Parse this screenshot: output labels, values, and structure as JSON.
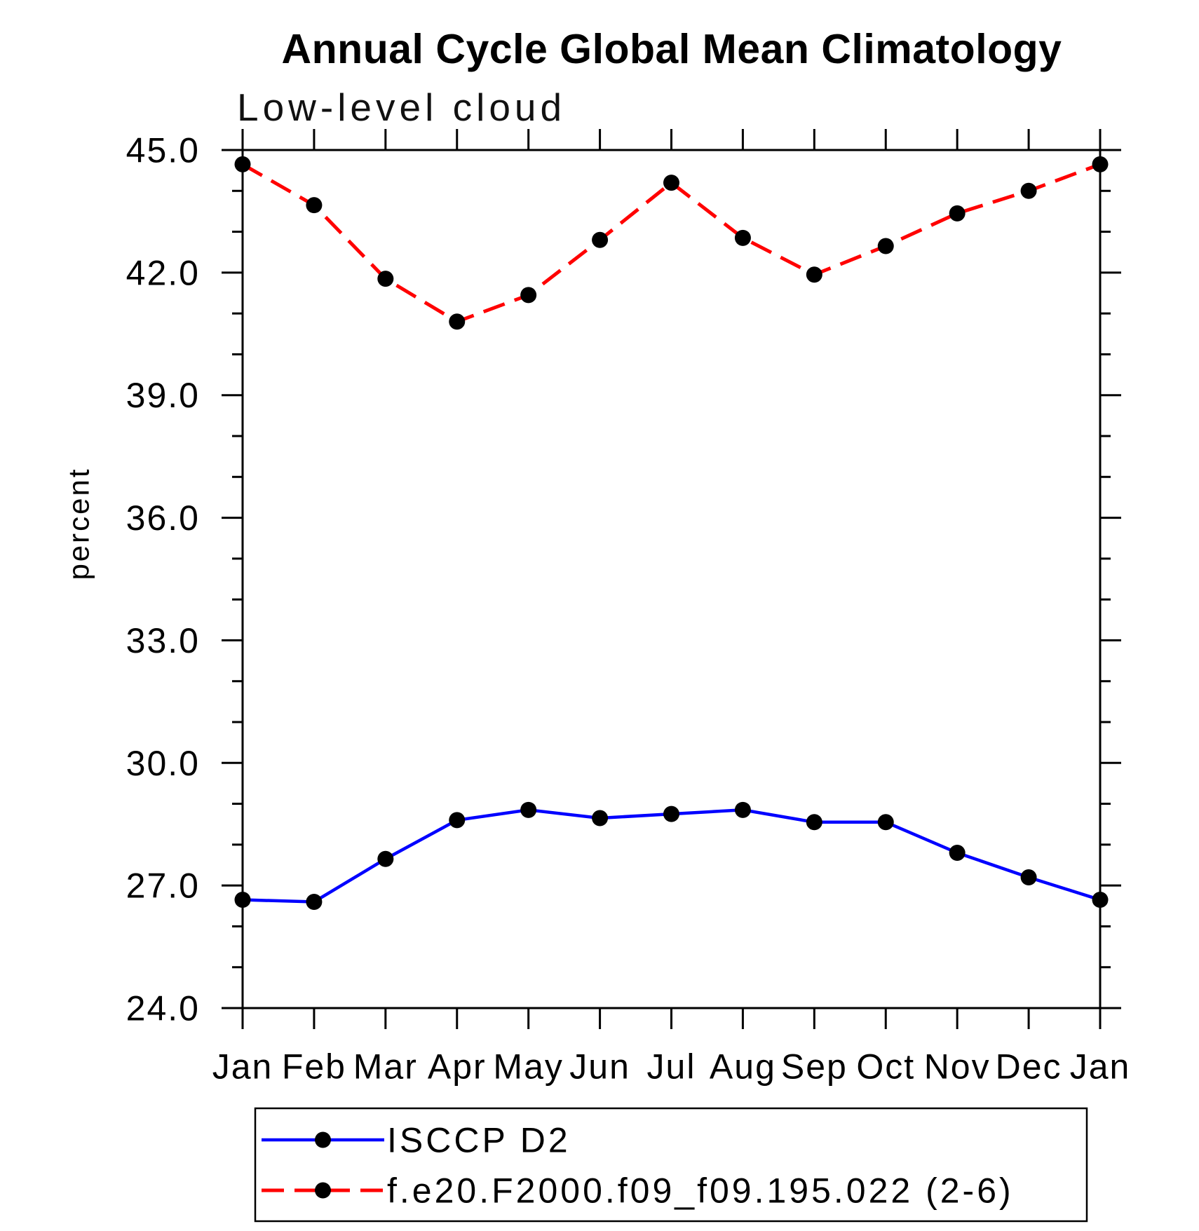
{
  "chart_data": {
    "type": "line",
    "title": "Annual Cycle Global Mean Climatology",
    "subtitle": "Low-level cloud",
    "ylabel": "percent",
    "xlabel": "",
    "categories": [
      "Jan",
      "Feb",
      "Mar",
      "Apr",
      "May",
      "Jun",
      "Jul",
      "Aug",
      "Sep",
      "Oct",
      "Nov",
      "Dec",
      "Jan"
    ],
    "ylim": [
      24.0,
      45.0
    ],
    "y_major_ticks": [
      24.0,
      27.0,
      30.0,
      33.0,
      36.0,
      39.0,
      42.0,
      45.0
    ],
    "y_major_tick_labels": [
      "24.0",
      "27.0",
      "30.0",
      "33.0",
      "36.0",
      "39.0",
      "42.0",
      "45.0"
    ],
    "y_minor_tick_interval": 1.0,
    "grid": false,
    "ticks_direction": "outward",
    "legend_position": "bottom",
    "axis_color": "#000000",
    "marker_color": "#000000",
    "series": [
      {
        "name": "ISCCP D2",
        "color": "#0000ff",
        "line_style": "solid",
        "marker": "circle",
        "values": [
          26.65,
          26.6,
          27.65,
          28.6,
          28.85,
          28.65,
          28.75,
          28.85,
          28.55,
          28.55,
          27.8,
          27.2,
          26.65
        ]
      },
      {
        "name": "f.e20.F2000.f09_f09.195.022 (2-6)",
        "color": "#ff0000",
        "line_style": "dashed",
        "marker": "circle",
        "values": [
          44.65,
          43.65,
          41.85,
          40.8,
          41.45,
          42.8,
          44.2,
          42.85,
          41.95,
          42.65,
          43.45,
          44.0,
          44.65
        ]
      }
    ]
  }
}
